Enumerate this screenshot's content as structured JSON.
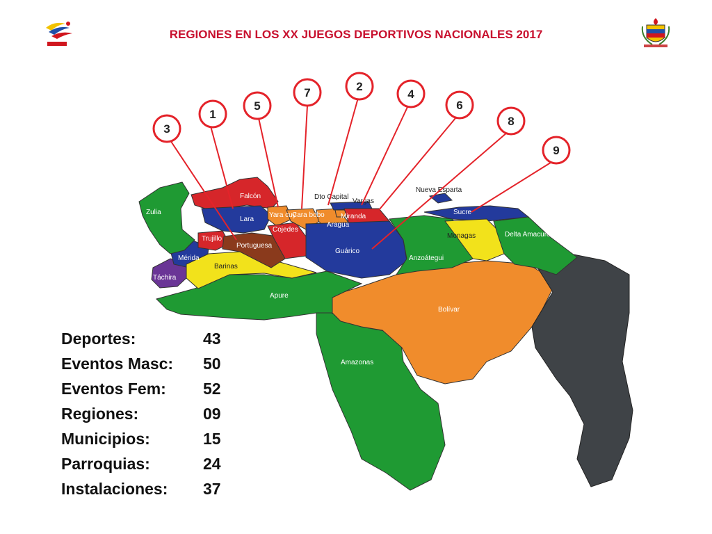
{
  "title": "REGIONES EN LOS XX JUEGOS DEPORTIVOS NACIONALES 2017",
  "logos": {
    "left": "sports-games-logo-icon",
    "right": "state-coat-of-arms-icon"
  },
  "colors": {
    "title": "#c8102e",
    "callout_stroke": "#e4232a"
  },
  "callouts": [
    "1",
    "2",
    "3",
    "4",
    "5",
    "6",
    "7",
    "8",
    "9"
  ],
  "states": {
    "zulia": "Zulia",
    "falcon": "Falcón",
    "lara": "Lara",
    "yaracuy": "Yara cuy",
    "carabobo": "Cara bobo",
    "cojedes": "Cojedes",
    "trujillo": "Trujillo",
    "portuguesa": "Portuguesa",
    "merida": "Mérida",
    "tachira": "Táchira",
    "barinas": "Barinas",
    "apure": "Apure",
    "aragua": "Aragua",
    "dto_capital": "Dto Capital",
    "vargas": "Vargas",
    "miranda": "Miranda",
    "guarico": "Guárico",
    "anzoategui": "Anzoátegui",
    "nueva_esparta": "Nueva Esparta",
    "sucre": "Sucre",
    "monagas": "Monagas",
    "delta_amacuro": "Delta Amacuro",
    "bolivar": "Bolívar",
    "amazonas": "Amazonas"
  },
  "stats": [
    {
      "label": "Deportes:",
      "value": "43"
    },
    {
      "label": "Eventos Masc:",
      "value": "50"
    },
    {
      "label": "Eventos Fem:",
      "value": "52"
    },
    {
      "label": "Regiones:",
      "value": "09"
    },
    {
      "label": "Municipios:",
      "value": "15"
    },
    {
      "label": "Parroquias:",
      "value": "24"
    },
    {
      "label": "Instalaciones:",
      "value": "37"
    }
  ]
}
